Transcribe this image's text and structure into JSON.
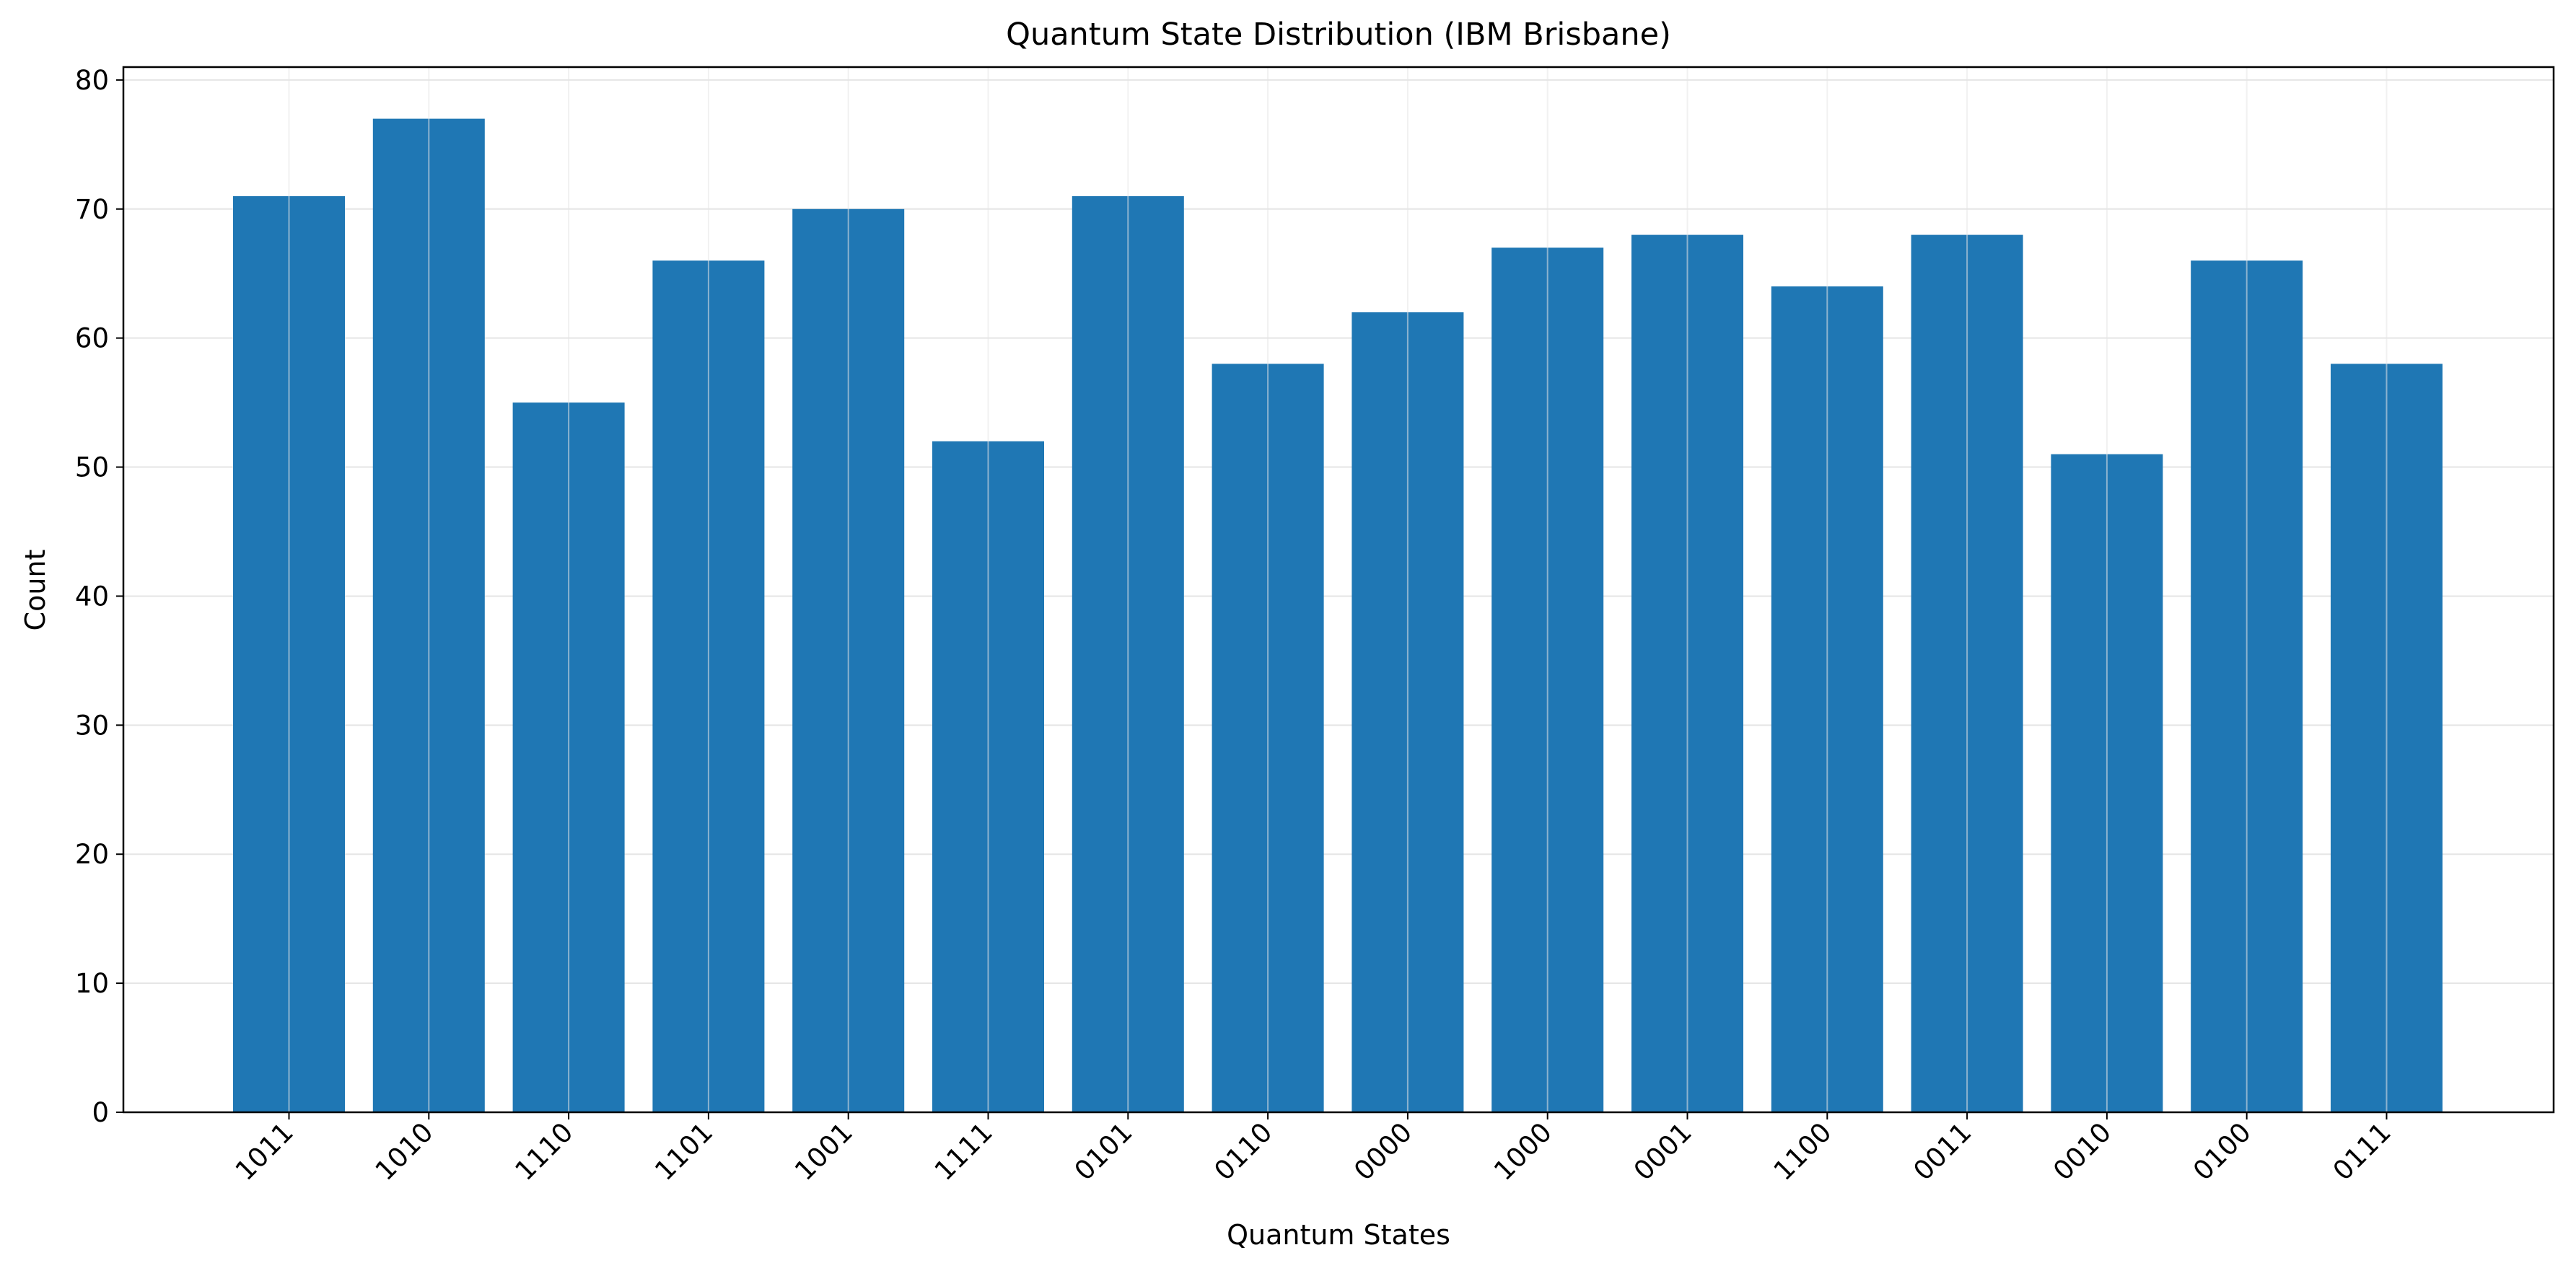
{
  "chart_data": {
    "type": "bar",
    "title": "Quantum State Distribution (IBM Brisbane)",
    "xlabel": "Quantum States",
    "ylabel": "Count",
    "categories": [
      "1011",
      "1010",
      "1110",
      "1101",
      "1001",
      "1111",
      "0101",
      "0110",
      "0000",
      "1000",
      "0001",
      "1100",
      "0011",
      "0010",
      "0100",
      "0111"
    ],
    "values": [
      71,
      77,
      55,
      66,
      70,
      52,
      71,
      58,
      62,
      67,
      68,
      64,
      68,
      51,
      66,
      58
    ],
    "ylim": [
      0,
      81
    ],
    "yticks": [
      0,
      10,
      20,
      30,
      40,
      50,
      60,
      70,
      80
    ],
    "grid": true,
    "bar_color": "#1f77b4",
    "grid_color": "#e5e5e5",
    "xtick_rotation_deg": 45
  }
}
